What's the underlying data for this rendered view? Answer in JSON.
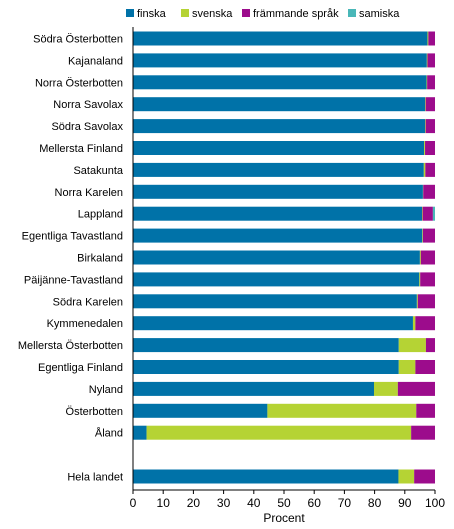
{
  "chart_data": {
    "type": "bar",
    "orientation": "horizontal",
    "stacked": true,
    "xlabel": "Procent",
    "xlim": [
      0,
      100
    ],
    "xticks": [
      0,
      10,
      20,
      30,
      40,
      50,
      60,
      70,
      80,
      90,
      100
    ],
    "grid": false,
    "legend_position": "top",
    "categories": [
      "Södra Österbotten",
      "Kajanaland",
      "Norra Österbotten",
      "Norra Savolax",
      "Södra Savolax",
      "Mellersta Finland",
      "Satakunta",
      "Norra Karelen",
      "Lappland",
      "Egentliga Tavastland",
      "Birkaland",
      "Päijänne-Tavastland",
      "Södra Karelen",
      "Kymmenedalen",
      "Mellersta Österbotten",
      "Egentliga Finland",
      "Nyland",
      "Österbotten",
      "Åland",
      "",
      "Hela landet"
    ],
    "series": [
      {
        "name": "finska",
        "color": "#0072a8",
        "values": [
          97.5,
          97.3,
          97.2,
          96.7,
          96.7,
          96.4,
          96.3,
          96.0,
          95.7,
          95.8,
          95.0,
          94.8,
          94.0,
          92.7,
          88.0,
          88.0,
          79.8,
          44.5,
          4.5,
          null,
          87.9
        ]
      },
      {
        "name": "svenska",
        "color": "#b5d334",
        "values": [
          0.3,
          0.2,
          0.2,
          0.2,
          0.2,
          0.3,
          0.5,
          0.1,
          0.2,
          0.2,
          0.3,
          0.3,
          0.3,
          0.8,
          9.0,
          5.5,
          7.9,
          49.3,
          87.6,
          null,
          5.2
        ]
      },
      {
        "name": "främmande språk",
        "color": "#9c0c8c",
        "values": [
          2.2,
          2.5,
          2.6,
          3.1,
          3.1,
          3.3,
          3.2,
          3.9,
          3.4,
          4.0,
          4.7,
          4.9,
          5.7,
          6.5,
          3.0,
          6.5,
          12.3,
          6.2,
          7.9,
          null,
          6.9
        ]
      },
      {
        "name": "samiska",
        "color": "#49b7b8",
        "values": [
          0,
          0,
          0,
          0,
          0,
          0,
          0,
          0,
          0.7,
          0,
          0,
          0,
          0,
          0,
          0,
          0,
          0,
          0,
          0,
          null,
          0
        ]
      }
    ]
  }
}
